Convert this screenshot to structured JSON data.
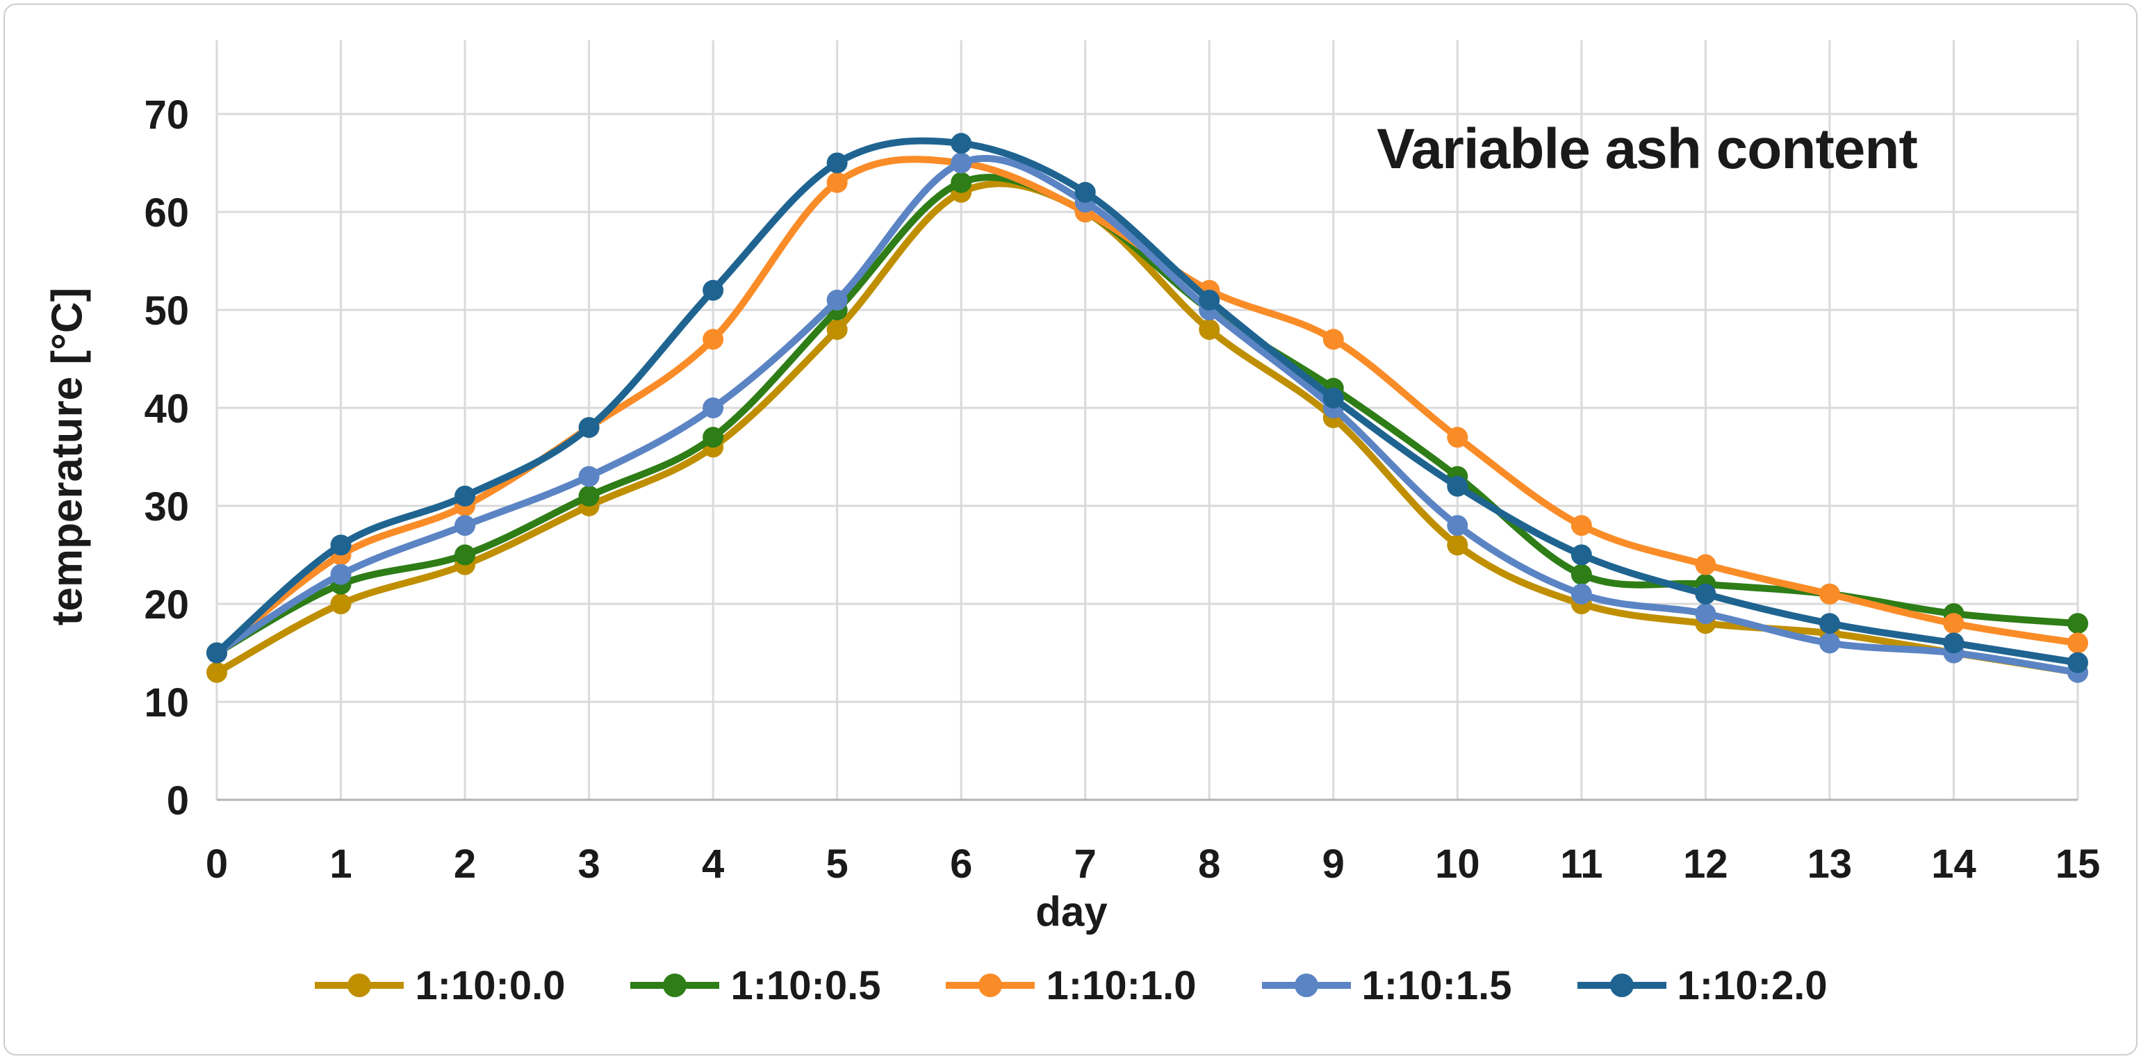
{
  "title": "Variable ash content",
  "axes": {
    "y_title": "temperature [°C]",
    "x_title": "day"
  },
  "colors": {
    "background": "#ffffff",
    "frame_border": "#cdcdcd",
    "grid": "#dadada",
    "axis_line": "#b3b3b3",
    "text": "#1a1a1a"
  },
  "legend": {
    "position": "bottom"
  },
  "chart_data": {
    "type": "line",
    "title": "Variable ash content",
    "xlabel": "day",
    "ylabel": "temperature [°C]",
    "x": [
      0,
      1,
      2,
      3,
      4,
      5,
      6,
      7,
      8,
      9,
      10,
      11,
      12,
      13,
      14,
      15
    ],
    "x_ticks": [
      0,
      1,
      2,
      3,
      4,
      5,
      6,
      7,
      8,
      9,
      10,
      11,
      12,
      13,
      14,
      15
    ],
    "y_ticks": [
      0,
      10,
      20,
      30,
      40,
      50,
      60,
      70
    ],
    "ylim": [
      0,
      70
    ],
    "xlim": [
      0,
      15
    ],
    "grid": true,
    "smooth": true,
    "markers": true,
    "legend_position": "bottom",
    "series": [
      {
        "name": "1:10:0.0",
        "color": "#BF8F00",
        "values": [
          13,
          20,
          24,
          30,
          36,
          48,
          62,
          60,
          48,
          39,
          26,
          20,
          18,
          17,
          15,
          13
        ]
      },
      {
        "name": "1:10:0.5",
        "color": "#2E7D16",
        "values": [
          15,
          22,
          25,
          31,
          37,
          50,
          63,
          60,
          50,
          42,
          33,
          23,
          22,
          21,
          19,
          18
        ]
      },
      {
        "name": "1:10:1.0",
        "color": "#FA8C28",
        "values": [
          15,
          25,
          30,
          38,
          47,
          63,
          65,
          60,
          52,
          47,
          37,
          28,
          24,
          21,
          18,
          16
        ]
      },
      {
        "name": "1:10:1.5",
        "color": "#5B84C4",
        "values": [
          15,
          23,
          28,
          33,
          40,
          51,
          65,
          61,
          50,
          40,
          28,
          21,
          19,
          16,
          15,
          13
        ]
      },
      {
        "name": "1:10:2.0",
        "color": "#1F6491",
        "values": [
          15,
          26,
          31,
          38,
          52,
          65,
          67,
          62,
          51,
          41,
          32,
          25,
          21,
          18,
          16,
          14
        ]
      }
    ]
  }
}
